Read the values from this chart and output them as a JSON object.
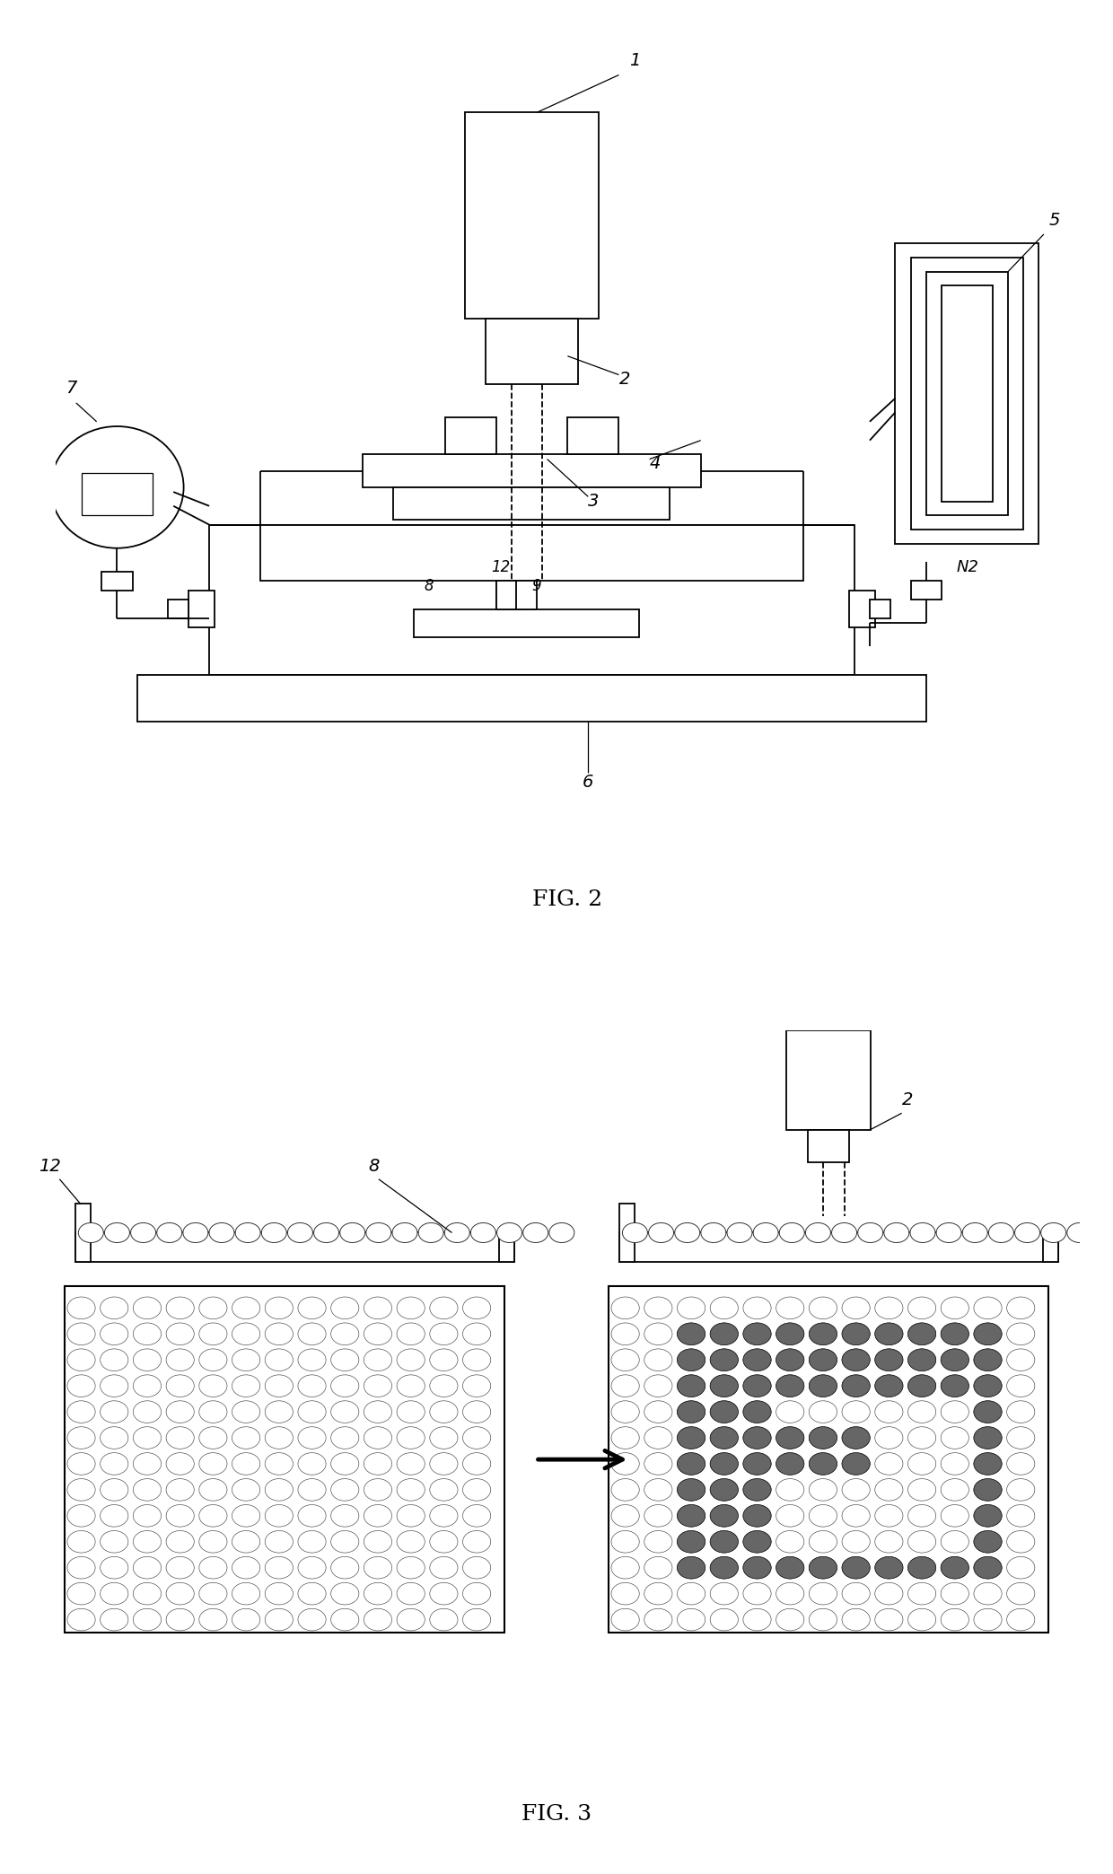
{
  "fig_width": 12.4,
  "fig_height": 20.88,
  "bg_color": "#ffffff",
  "line_color": "#000000",
  "fig2_label": "FIG. 2",
  "fig3_label": "FIG. 3",
  "label_fontsize": 16,
  "annotation_fontsize": 14
}
